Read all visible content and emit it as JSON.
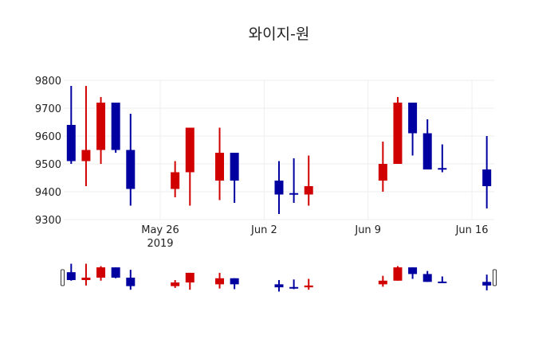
{
  "chart_data": {
    "type": "candlestick",
    "title": "와이지-원",
    "xlabel": "",
    "ylabel": "",
    "ylim": [
      9300,
      9800
    ],
    "y_ticks": [
      9300,
      9400,
      9500,
      9600,
      9700,
      9800
    ],
    "x_ticks": [
      {
        "date": "2019-05-26",
        "label": "May 26",
        "sublabel": "2019"
      },
      {
        "date": "2019-06-02",
        "label": "Jun 2",
        "sublabel": ""
      },
      {
        "date": "2019-06-09",
        "label": "Jun 9",
        "sublabel": ""
      },
      {
        "date": "2019-06-16",
        "label": "Jun 16",
        "sublabel": ""
      }
    ],
    "x_range": [
      "2019-05-19T12:00",
      "2019-06-17T12:00"
    ],
    "grid": true,
    "rangeslider": true,
    "colors": {
      "increasing": "#d10000",
      "decreasing": "#0000a0"
    },
    "candles": [
      {
        "date": "2019-05-20",
        "open": 9640,
        "high": 9780,
        "low": 9500,
        "close": 9510
      },
      {
        "date": "2019-05-21",
        "open": 9510,
        "high": 9780,
        "low": 9420,
        "close": 9550
      },
      {
        "date": "2019-05-22",
        "open": 9550,
        "high": 9740,
        "low": 9500,
        "close": 9720
      },
      {
        "date": "2019-05-23",
        "open": 9720,
        "high": 9720,
        "low": 9540,
        "close": 9550
      },
      {
        "date": "2019-05-24",
        "open": 9550,
        "high": 9680,
        "low": 9350,
        "close": 9410
      },
      {
        "date": "2019-05-27",
        "open": 9410,
        "high": 9510,
        "low": 9380,
        "close": 9470
      },
      {
        "date": "2019-05-28",
        "open": 9470,
        "high": 9630,
        "low": 9350,
        "close": 9630
      },
      {
        "date": "2019-05-30",
        "open": 9440,
        "high": 9630,
        "low": 9370,
        "close": 9540
      },
      {
        "date": "2019-05-31",
        "open": 9540,
        "high": 9540,
        "low": 9360,
        "close": 9440
      },
      {
        "date": "2019-06-03",
        "open": 9440,
        "high": 9510,
        "low": 9320,
        "close": 9390
      },
      {
        "date": "2019-06-04",
        "open": 9395,
        "high": 9520,
        "low": 9360,
        "close": 9390
      },
      {
        "date": "2019-06-05",
        "open": 9390,
        "high": 9530,
        "low": 9350,
        "close": 9420
      },
      {
        "date": "2019-06-10",
        "open": 9440,
        "high": 9580,
        "low": 9400,
        "close": 9500
      },
      {
        "date": "2019-06-11",
        "open": 9500,
        "high": 9740,
        "low": 9500,
        "close": 9720
      },
      {
        "date": "2019-06-12",
        "open": 9720,
        "high": 9720,
        "low": 9530,
        "close": 9610
      },
      {
        "date": "2019-06-13",
        "open": 9610,
        "high": 9660,
        "low": 9480,
        "close": 9480
      },
      {
        "date": "2019-06-14",
        "open": 9485,
        "high": 9570,
        "low": 9470,
        "close": 9480
      },
      {
        "date": "2019-06-17",
        "open": 9480,
        "high": 9600,
        "low": 9340,
        "close": 9420
      }
    ]
  }
}
